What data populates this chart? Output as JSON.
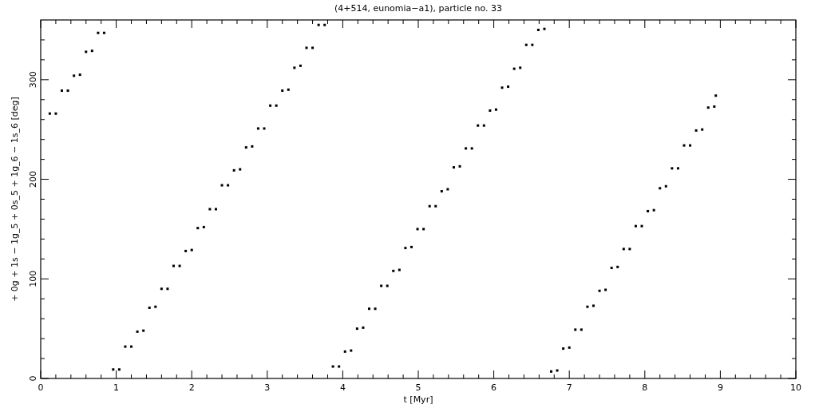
{
  "chart_data": {
    "type": "scatter",
    "title": "(4+514, eunomia−a1), particle no. 33",
    "xlabel": "t [Myr]",
    "ylabel": "+ 0g + 1s − 1g_5 + 0s_5 + 1g_6 − 1s_6 [deg]",
    "xlim": [
      0,
      10
    ],
    "ylim": [
      0,
      360
    ],
    "xticks": [
      0,
      {
        "value": 0.2,
        "label": null
      },
      {
        "value": 0.4,
        "label": null
      },
      {
        "value": 0.6,
        "label": null
      },
      {
        "value": 0.8,
        "label": null
      },
      1,
      {
        "value": 1.2,
        "label": null
      },
      {
        "value": 1.4,
        "label": null
      },
      {
        "value": 1.6,
        "label": null
      },
      {
        "value": 1.8,
        "label": null
      },
      2,
      {
        "value": 2.2,
        "label": null
      },
      {
        "value": 2.4,
        "label": null
      },
      {
        "value": 2.6,
        "label": null
      },
      {
        "value": 2.8,
        "label": null
      },
      3,
      {
        "value": 3.2,
        "label": null
      },
      {
        "value": 3.4,
        "label": null
      },
      {
        "value": 3.6,
        "label": null
      },
      {
        "value": 3.8,
        "label": null
      },
      4,
      {
        "value": 4.2,
        "label": null
      },
      {
        "value": 4.4,
        "label": null
      },
      {
        "value": 4.6,
        "label": null
      },
      {
        "value": 4.8,
        "label": null
      },
      5,
      {
        "value": 5.2,
        "label": null
      },
      {
        "value": 5.4,
        "label": null
      },
      {
        "value": 5.6,
        "label": null
      },
      {
        "value": 5.8,
        "label": null
      },
      6,
      {
        "value": 6.2,
        "label": null
      },
      {
        "value": 6.4,
        "label": null
      },
      {
        "value": 6.6,
        "label": null
      },
      {
        "value": 6.8,
        "label": null
      },
      7,
      {
        "value": 7.2,
        "label": null
      },
      {
        "value": 7.4,
        "label": null
      },
      {
        "value": 7.6,
        "label": null
      },
      {
        "value": 7.8,
        "label": null
      },
      8,
      {
        "value": 8.2,
        "label": null
      },
      {
        "value": 8.4,
        "label": null
      },
      {
        "value": 8.6,
        "label": null
      },
      {
        "value": 8.8,
        "label": null
      },
      9,
      {
        "value": 9.2,
        "label": null
      },
      {
        "value": 9.4,
        "label": null
      },
      {
        "value": 9.6,
        "label": null
      },
      {
        "value": 9.8,
        "label": null
      },
      10
    ],
    "yticks": [
      0,
      {
        "value": 20,
        "label": null
      },
      {
        "value": 40,
        "label": null
      },
      {
        "value": 60,
        "label": null
      },
      {
        "value": 80,
        "label": null
      },
      100,
      {
        "value": 120,
        "label": null
      },
      {
        "value": 140,
        "label": null
      },
      {
        "value": 160,
        "label": null
      },
      {
        "value": 180,
        "label": null
      },
      200,
      {
        "value": 220,
        "label": null
      },
      {
        "value": 240,
        "label": null
      },
      {
        "value": 260,
        "label": null
      },
      {
        "value": 280,
        "label": null
      },
      300,
      {
        "value": 320,
        "label": null
      },
      {
        "value": 340,
        "label": null
      }
    ],
    "series": [
      {
        "color": "#000000",
        "x": [
          0.12,
          0.2,
          0.28,
          0.36,
          0.44,
          0.52,
          0.6,
          0.68,
          0.76,
          0.84,
          0.96,
          1.04,
          1.12,
          1.2,
          1.28,
          1.36,
          1.44,
          1.52,
          1.6,
          1.68,
          1.76,
          1.84,
          1.92,
          2.0,
          2.08,
          2.16,
          2.24,
          2.32,
          2.4,
          2.48,
          2.56,
          2.64,
          2.72,
          2.8,
          2.88,
          2.96,
          3.04,
          3.12,
          3.2,
          3.28,
          3.36,
          3.44,
          3.52,
          3.6,
          3.68,
          3.76,
          3.87,
          3.95,
          4.03,
          4.11,
          4.19,
          4.27,
          4.35,
          4.43,
          4.51,
          4.59,
          4.67,
          4.75,
          4.83,
          4.91,
          4.99,
          5.07,
          5.15,
          5.23,
          5.31,
          5.39,
          5.47,
          5.55,
          5.63,
          5.71,
          5.79,
          5.87,
          5.95,
          6.03,
          6.11,
          6.19,
          6.27,
          6.35,
          6.43,
          6.51,
          6.59,
          6.67,
          6.76,
          6.84,
          6.92,
          7.0,
          7.08,
          7.16,
          7.24,
          7.32,
          7.4,
          7.48,
          7.56,
          7.64,
          7.72,
          7.8,
          7.88,
          7.96,
          8.04,
          8.12,
          8.2,
          8.28,
          8.36,
          8.44,
          8.52,
          8.6,
          8.68,
          8.76,
          8.84,
          8.92,
          8.94
        ],
        "values": [
          266,
          266,
          289,
          289,
          304,
          305,
          328,
          329,
          347,
          347,
          9,
          9,
          32,
          32,
          47,
          48,
          71,
          72,
          90,
          90,
          113,
          113,
          128,
          129,
          151,
          152,
          170,
          170,
          194,
          194,
          209,
          210,
          232,
          233,
          251,
          251,
          274,
          274,
          289,
          290,
          312,
          314,
          332,
          332,
          355,
          355,
          12,
          12,
          27,
          28,
          50,
          51,
          70,
          70,
          93,
          93,
          108,
          109,
          131,
          132,
          150,
          150,
          173,
          173,
          188,
          190,
          212,
          213,
          231,
          231,
          254,
          254,
          269,
          270,
          292,
          293,
          311,
          312,
          335,
          335,
          350,
          351,
          7,
          8,
          30,
          31,
          49,
          49,
          72,
          73,
          88,
          89,
          111,
          112,
          130,
          130,
          153,
          153,
          168,
          169,
          191,
          193,
          211,
          211,
          234,
          234,
          249,
          250,
          272,
          273,
          284
        ]
      }
    ]
  }
}
